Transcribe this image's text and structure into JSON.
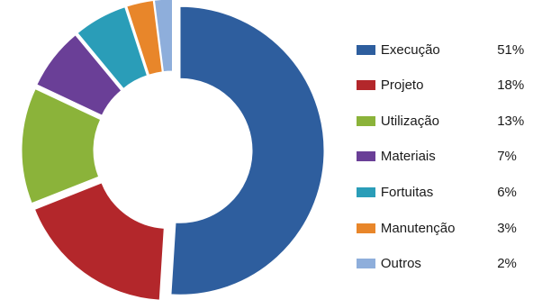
{
  "chart_data": {
    "type": "pie",
    "style": "exploded-donut",
    "legend_position": "right",
    "slices": [
      {
        "label": "Execução",
        "value": 51,
        "value_label": "51%",
        "color": "#2E5E9E"
      },
      {
        "label": "Projeto",
        "value": 18,
        "value_label": "18%",
        "color": "#B3272B"
      },
      {
        "label": "Utilização",
        "value": 13,
        "value_label": "13%",
        "color": "#8BB33A"
      },
      {
        "label": "Materiais",
        "value": 7,
        "value_label": "7%",
        "color": "#6A3F97"
      },
      {
        "label": "Fortuitas",
        "value": 6,
        "value_label": "6%",
        "color": "#2A9DB8"
      },
      {
        "label": "Manutenção",
        "value": 3,
        "value_label": "3%",
        "color": "#E8862A"
      },
      {
        "label": "Outros",
        "value": 2,
        "value_label": "2%",
        "color": "#8EAEDB"
      }
    ]
  }
}
